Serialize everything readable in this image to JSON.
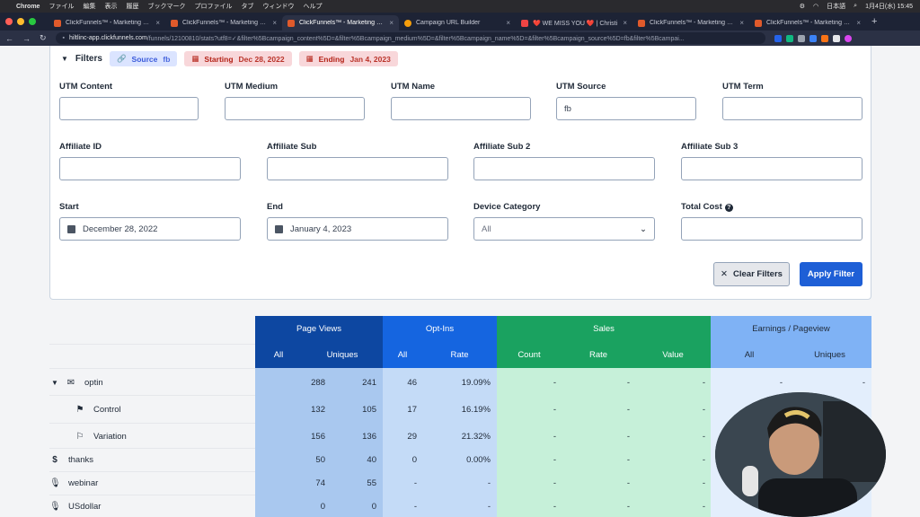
{
  "menubar": {
    "app": "Chrome",
    "items": [
      "ファイル",
      "編集",
      "表示",
      "履歴",
      "ブックマーク",
      "プロファイル",
      "タブ",
      "ウィンドウ",
      "ヘルプ"
    ],
    "right_ime": "日本語",
    "clock": "1月4日(水) 15:45"
  },
  "tabs": [
    {
      "title": "ClickFunnels™ - Marketing Fun"
    },
    {
      "title": "ClickFunnels™ - Marketing Fun"
    },
    {
      "title": "ClickFunnels™ - Marketing Fun"
    },
    {
      "title": "Campaign URL Builder"
    },
    {
      "title": "❤️ WE MISS YOU ❤️ | Christi"
    },
    {
      "title": "ClickFunnels™ - Marketing Fun"
    },
    {
      "title": "ClickFunnels™ - Marketing Fun"
    }
  ],
  "address": {
    "host": "hiltlinc-app.clickfunnels.com",
    "path": "/funnels/12100810/stats?utf8=✓&filter%5Bcampaign_content%5D=&filter%5Bcampaign_medium%5D=&filter%5Bcampaign_name%5D=&filter%5Bcampaign_source%5D=fb&filter%5Bcampai..."
  },
  "filters": {
    "title": "Filters",
    "chip_source_label": "Source",
    "chip_source_value": "fb",
    "chip_start_label": "Starting",
    "chip_start_value": "Dec 28, 2022",
    "chip_end_label": "Ending",
    "chip_end_value": "Jan 4, 2023",
    "utm_content": {
      "label": "UTM Content",
      "value": ""
    },
    "utm_medium": {
      "label": "UTM Medium",
      "value": ""
    },
    "utm_name": {
      "label": "UTM Name",
      "value": ""
    },
    "utm_source": {
      "label": "UTM Source",
      "value": "fb"
    },
    "utm_term": {
      "label": "UTM Term",
      "value": ""
    },
    "affiliate_id": {
      "label": "Affiliate ID",
      "value": ""
    },
    "affiliate_sub": {
      "label": "Affiliate Sub",
      "value": ""
    },
    "affiliate_sub2": {
      "label": "Affiliate Sub 2",
      "value": ""
    },
    "affiliate_sub3": {
      "label": "Affiliate Sub 3",
      "value": ""
    },
    "start": {
      "label": "Start",
      "value": "December 28, 2022"
    },
    "end": {
      "label": "End",
      "value": "January 4, 2023"
    },
    "device": {
      "label": "Device Category",
      "value": "All"
    },
    "total_cost": {
      "label": "Total Cost",
      "value": ""
    },
    "clear_label": "Clear Filters",
    "apply_label": "Apply Filter"
  },
  "table": {
    "groups": {
      "page_views": "Page Views",
      "opt_ins": "Opt-Ins",
      "sales": "Sales",
      "earnings": "Earnings / Pageview"
    },
    "sub": {
      "pv_all": "All",
      "pv_uniques": "Uniques",
      "oi_all": "All",
      "oi_rate": "Rate",
      "s_count": "Count",
      "s_rate": "Rate",
      "s_value": "Value",
      "e_all": "All",
      "e_uniques": "Uniques"
    },
    "rows": [
      {
        "label": "optin",
        "icon": "envelope-icon",
        "pv_all": "288",
        "pv_uniques": "241",
        "oi_all": "46",
        "oi_rate": "19.09%",
        "s_count": "-",
        "s_rate": "-",
        "s_value": "-",
        "e_all": "-",
        "e_uniques": "-"
      },
      {
        "label": "Control",
        "icon": "flag-icon",
        "pv_all": "132",
        "pv_uniques": "105",
        "oi_all": "17",
        "oi_rate": "16.19%",
        "s_count": "-",
        "s_rate": "-",
        "s_value": "-",
        "e_all": "",
        "e_uniques": ""
      },
      {
        "label": "Variation",
        "icon": "flag-outline-icon",
        "pv_all": "156",
        "pv_uniques": "136",
        "oi_all": "29",
        "oi_rate": "21.32%",
        "s_count": "-",
        "s_rate": "-",
        "s_value": "-",
        "e_all": "",
        "e_uniques": ""
      },
      {
        "label": "thanks",
        "icon": "dollar-icon",
        "pv_all": "50",
        "pv_uniques": "40",
        "oi_all": "0",
        "oi_rate": "0.00%",
        "s_count": "-",
        "s_rate": "-",
        "s_value": "-",
        "e_all": "",
        "e_uniques": ""
      },
      {
        "label": "webinar",
        "icon": "microphone-icon",
        "pv_all": "74",
        "pv_uniques": "55",
        "oi_all": "-",
        "oi_rate": "-",
        "s_count": "-",
        "s_rate": "-",
        "s_value": "-",
        "e_all": "",
        "e_uniques": ""
      },
      {
        "label": "USdollar",
        "icon": "microphone-icon",
        "pv_all": "0",
        "pv_uniques": "0",
        "oi_all": "-",
        "oi_rate": "-",
        "s_count": "-",
        "s_rate": "-",
        "s_value": "-",
        "e_all": "",
        "e_uniques": ""
      }
    ]
  },
  "colors": {
    "page_views_header": "#0d47a1",
    "opt_ins_header": "#1565e0",
    "sales_header": "#1aa260",
    "earnings_header": "#7fb2f5",
    "apply_button": "#1e5fd6"
  }
}
